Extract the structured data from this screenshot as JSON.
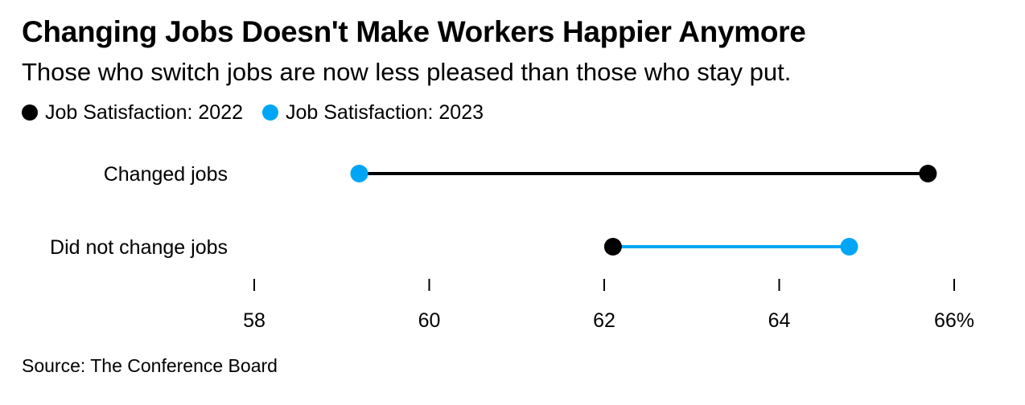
{
  "chart_data": {
    "type": "dumbbell",
    "title": "Changing Jobs Doesn't Make Workers Happier Anymore",
    "subtitle": "Those who switch jobs are now less pleased than those who stay put.",
    "legend": [
      {
        "name": "Job Satisfaction: 2022",
        "color": "#000000"
      },
      {
        "name": "Job Satisfaction: 2023",
        "color": "#00a6f5"
      }
    ],
    "categories": [
      "Changed jobs",
      "Did not change jobs"
    ],
    "series": [
      {
        "name": "Job Satisfaction: 2022",
        "values": [
          65.7,
          62.1
        ]
      },
      {
        "name": "Job Satisfaction: 2023",
        "values": [
          59.2,
          64.8
        ]
      }
    ],
    "x_ticks": [
      58,
      60,
      62,
      64,
      66
    ],
    "x_tick_labels": [
      "58",
      "60",
      "62",
      "64",
      "66%"
    ],
    "xlim": [
      58,
      66
    ],
    "source": "Source: The Conference Board"
  }
}
